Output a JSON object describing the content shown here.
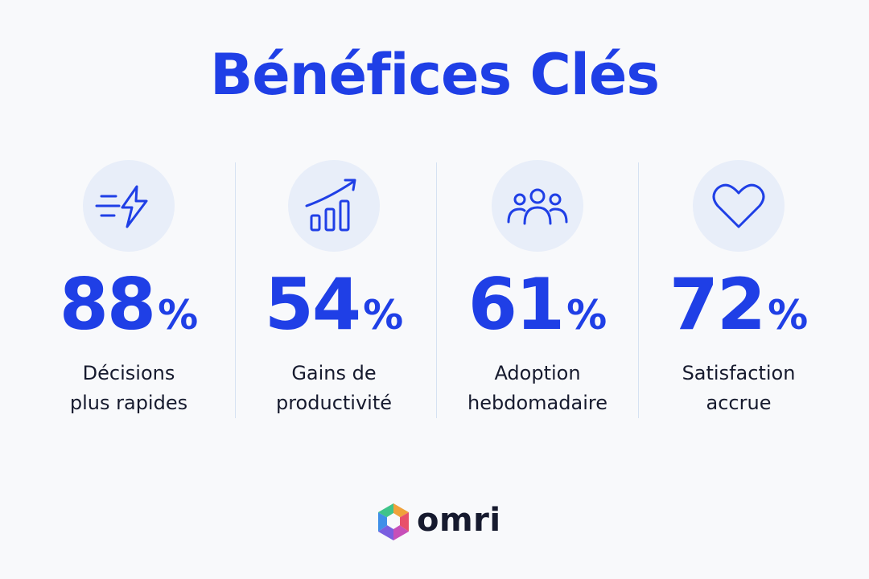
{
  "header": {
    "title": "Bénéfices Clés"
  },
  "stats": [
    {
      "value": "88",
      "unit": "%",
      "label": [
        "Décisions",
        "plus rapides"
      ]
    },
    {
      "value": "54",
      "unit": "%",
      "label": [
        "Gains de",
        "productivité"
      ]
    },
    {
      "value": "61",
      "unit": "%",
      "label": [
        "Adoption",
        "hebdomadaire"
      ]
    },
    {
      "value": "72",
      "unit": "%",
      "label": [
        "Satisfaction",
        "accrue"
      ]
    }
  ],
  "footer": {
    "brand": "omri"
  }
}
